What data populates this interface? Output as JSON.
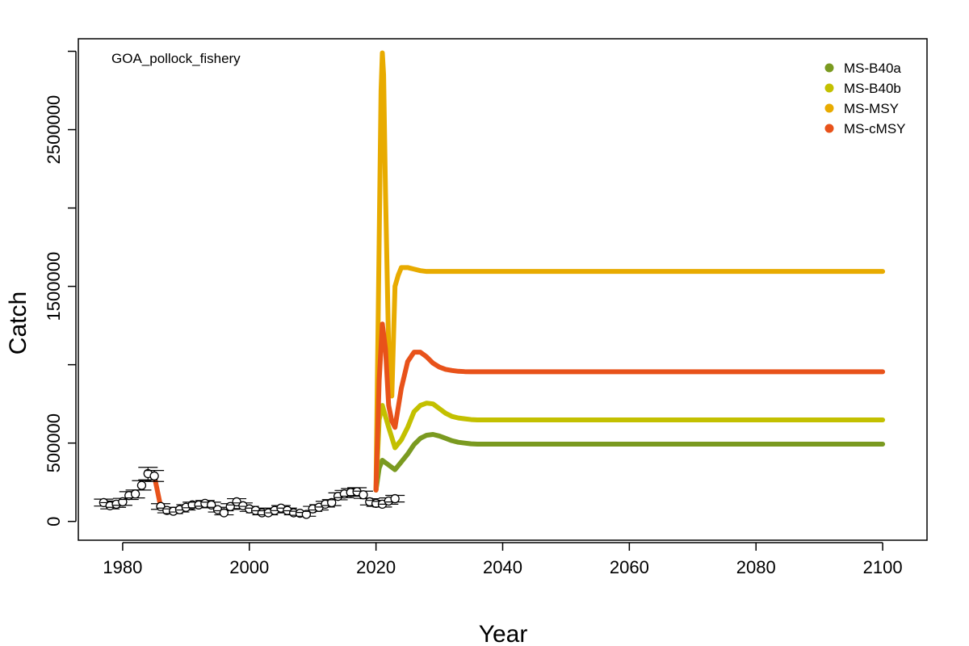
{
  "chart_data": {
    "type": "line",
    "title": "",
    "annotation": "GOA_pollock_fishery",
    "xlabel": "Year",
    "ylabel": "Catch",
    "xlim": [
      1973,
      2107
    ],
    "ylim": [
      -120000,
      3080000
    ],
    "x_ticks": [
      1980,
      2000,
      2020,
      2040,
      2060,
      2080,
      2100
    ],
    "x_tick_labels": [
      "1980",
      "2000",
      "2020",
      "2040",
      "2060",
      "2080",
      "2100"
    ],
    "y_ticks": [
      0,
      500000,
      1000000,
      1500000,
      2000000,
      2500000,
      3000000
    ],
    "y_tick_labels": [
      "0",
      "500000",
      "",
      "1500000",
      "",
      "2500000",
      ""
    ],
    "legend_position": "top-right",
    "observed": {
      "x": [
        1977,
        1978,
        1979,
        1980,
        1981,
        1982,
        1983,
        1984,
        1985,
        1986,
        1987,
        1988,
        1989,
        1990,
        1991,
        1992,
        1993,
        1994,
        1995,
        1996,
        1997,
        1998,
        1999,
        2000,
        2001,
        2002,
        2003,
        2004,
        2005,
        2006,
        2007,
        2008,
        2009,
        2010,
        2011,
        2012,
        2013,
        2014,
        2015,
        2016,
        2017,
        2018,
        2019,
        2020,
        2021,
        2022,
        2023
      ],
      "y": [
        120000,
        100000,
        110000,
        125000,
        165000,
        175000,
        230000,
        305000,
        290000,
        95000,
        70000,
        65000,
        75000,
        90000,
        105000,
        105000,
        115000,
        105000,
        75000,
        55000,
        95000,
        125000,
        100000,
        80000,
        70000,
        55000,
        55000,
        70000,
        85000,
        70000,
        55000,
        52000,
        45000,
        80000,
        90000,
        110000,
        120000,
        160000,
        175000,
        185000,
        190000,
        170000,
        125000,
        115000,
        110000,
        130000,
        145000
      ],
      "err": [
        22000,
        20000,
        20000,
        22000,
        25000,
        25000,
        30000,
        40000,
        35000,
        18000,
        15000,
        15000,
        15000,
        17000,
        18000,
        18000,
        18000,
        18000,
        15000,
        13000,
        18000,
        20000,
        18000,
        16000,
        15000,
        13000,
        13000,
        15000,
        16000,
        15000,
        13000,
        13000,
        12000,
        16000,
        17000,
        18000,
        19000,
        22000,
        23000,
        24000,
        25000,
        23000,
        20000,
        19000,
        18000,
        20000,
        21000
      ]
    },
    "series": [
      {
        "name": "MS-B40a",
        "color": "#7a9a20",
        "x": [
          2020,
          2020.5,
          2021,
          2022,
          2023,
          2024,
          2025,
          2026,
          2027,
          2028,
          2029,
          2030,
          2031,
          2032,
          2033,
          2034,
          2035,
          2036,
          2038,
          2040,
          2050,
          2060,
          2070,
          2080,
          2090,
          2100
        ],
        "y": [
          200000,
          340000,
          390000,
          360000,
          330000,
          380000,
          430000,
          490000,
          530000,
          550000,
          555000,
          545000,
          530000,
          515000,
          505000,
          500000,
          495000,
          493000,
          493000,
          493000,
          493000,
          493000,
          493000,
          493000,
          493000,
          493000
        ]
      },
      {
        "name": "MS-B40b",
        "color": "#c3c000",
        "x": [
          2020,
          2020.5,
          2021,
          2022,
          2023,
          2024,
          2025,
          2026,
          2027,
          2028,
          2029,
          2030,
          2031,
          2032,
          2033,
          2034,
          2035,
          2036,
          2038,
          2040,
          2050,
          2060,
          2070,
          2080,
          2090,
          2100
        ],
        "y": [
          200000,
          650000,
          740000,
          600000,
          470000,
          520000,
          600000,
          700000,
          740000,
          755000,
          750000,
          720000,
          690000,
          670000,
          660000,
          655000,
          650000,
          648000,
          648000,
          648000,
          648000,
          648000,
          648000,
          648000,
          648000,
          648000
        ]
      },
      {
        "name": "MS-MSY",
        "color": "#e8ab00",
        "x": [
          2020,
          2020.5,
          2020.8,
          2021,
          2021.2,
          2021.5,
          2022,
          2022.5,
          2023,
          2023.5,
          2024,
          2025,
          2026,
          2027,
          2028,
          2029,
          2030,
          2035,
          2040,
          2050,
          2060,
          2070,
          2080,
          2090,
          2100
        ],
        "y": [
          200000,
          1800000,
          2750000,
          2990000,
          2850000,
          2100000,
          1100000,
          800000,
          1500000,
          1570000,
          1620000,
          1620000,
          1610000,
          1600000,
          1595000,
          1595000,
          1595000,
          1595000,
          1595000,
          1595000,
          1595000,
          1595000,
          1595000,
          1595000,
          1595000
        ]
      },
      {
        "name": "MS-cMSY",
        "color": "#e8521a",
        "x": [
          1984,
          1985,
          1986,
          2020,
          2020.5,
          2021,
          2021.5,
          2022,
          2022.5,
          2023,
          2024,
          2025,
          2026,
          2027,
          2028,
          2029,
          2030,
          2031,
          2032,
          2033,
          2034,
          2035,
          2040,
          2050,
          2060,
          2070,
          2080,
          2090,
          2100
        ],
        "y": [
          305000,
          290000,
          95000,
          200000,
          900000,
          1260000,
          1100000,
          740000,
          640000,
          600000,
          850000,
          1020000,
          1080000,
          1080000,
          1050000,
          1010000,
          985000,
          970000,
          963000,
          958000,
          956000,
          955000,
          955000,
          955000,
          955000,
          955000,
          955000,
          955000,
          955000
        ]
      }
    ]
  }
}
